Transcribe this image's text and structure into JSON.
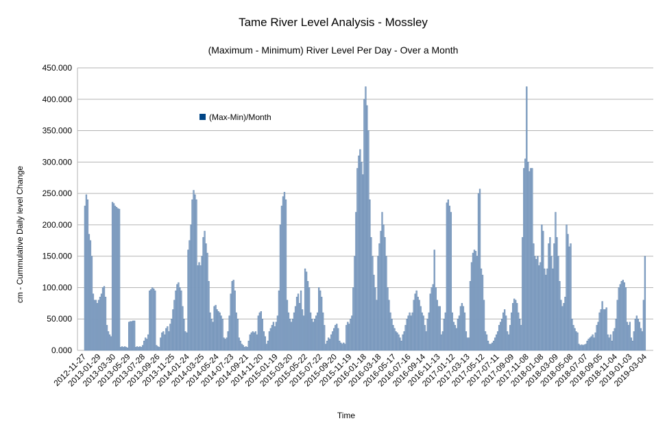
{
  "chart_data": {
    "type": "bar",
    "title": "Tame River Level Analysis - Mossley",
    "subtitle": "(Maximum - Minimum) River Level Per Day - Over a Month",
    "xlabel": "Time",
    "ylabel": "cm - Cummulative Daily level Change",
    "ylim": [
      0,
      450
    ],
    "yticks": [
      "0.000",
      "50.000",
      "100.000",
      "150.000",
      "200.000",
      "250.000",
      "300.000",
      "350.000",
      "400.000",
      "450.000"
    ],
    "grid": true,
    "legend_position": "upper-left-inside",
    "legend": [
      {
        "name": "(Max-Min)/Month",
        "color": "#004586"
      }
    ],
    "bar_color": "#8fa9c9",
    "xtick_labels": [
      "2012-11-27",
      "2013-01-29",
      "2013-03-30",
      "2013-05-29",
      "2013-07-28",
      "2013-09-26",
      "2013-11-25",
      "2014-01-24",
      "2014-03-25",
      "2014-05-24",
      "2014-07-23",
      "2014-09-21",
      "2014-11-20",
      "2015-01-19",
      "2015-03-20",
      "2015-05-22",
      "2015-07-22",
      "2015-09-20",
      "2015-11-19",
      "2016-01-18",
      "2016-03-18",
      "2016-05-17",
      "2016-07-16",
      "2016-09-14",
      "2016-11-13",
      "2017-01-12",
      "2017-03-13",
      "2017-05-12",
      "2017-07-11",
      "2017-09-09",
      "2017-11-08",
      "2018-01-08",
      "2018-03-09",
      "2018-05-08",
      "2018-07-07",
      "2018-09-05",
      "2018-11-04",
      "2019-01-03",
      "2019-03-04"
    ],
    "series": [
      {
        "name": "(Max-Min)/Month",
        "values": [
          230,
          248,
          240,
          185,
          175,
          150,
          90,
          80,
          80,
          75,
          80,
          85,
          90,
          100,
          102,
          85,
          40,
          30,
          25,
          22,
          236,
          234,
          230,
          228,
          226,
          225,
          5,
          6,
          5,
          6,
          5,
          4,
          45,
          46,
          46,
          47,
          47,
          5,
          6,
          5,
          6,
          5,
          8,
          15,
          20,
          18,
          25,
          95,
          97,
          100,
          98,
          95,
          8,
          6,
          5,
          20,
          28,
          30,
          25,
          35,
          38,
          30,
          42,
          50,
          65,
          80,
          95,
          105,
          108,
          100,
          95,
          70,
          50,
          30,
          28,
          160,
          175,
          200,
          240,
          255,
          248,
          240,
          135,
          140,
          135,
          150,
          180,
          190,
          170,
          155,
          110,
          60,
          50,
          45,
          70,
          72,
          65,
          62,
          60,
          55,
          50,
          20,
          18,
          20,
          30,
          55,
          90,
          110,
          112,
          95,
          60,
          50,
          20,
          15,
          10,
          8,
          5,
          6,
          5,
          15,
          25,
          28,
          30,
          28,
          30,
          25,
          55,
          60,
          62,
          50,
          30,
          22,
          10,
          15,
          30,
          35,
          40,
          45,
          38,
          45,
          55,
          95,
          200,
          230,
          245,
          252,
          240,
          80,
          60,
          50,
          45,
          50,
          60,
          70,
          85,
          90,
          75,
          95,
          65,
          55,
          130,
          125,
          110,
          100,
          60,
          50,
          45,
          50,
          55,
          60,
          100,
          95,
          85,
          60,
          40,
          10,
          15,
          20,
          18,
          25,
          30,
          35,
          40,
          42,
          35,
          15,
          12,
          10,
          12,
          10,
          40,
          45,
          42,
          50,
          55,
          100,
          150,
          220,
          290,
          310,
          320,
          300,
          280,
          400,
          420,
          390,
          350,
          240,
          180,
          150,
          120,
          100,
          80,
          150,
          170,
          190,
          220,
          200,
          180,
          150,
          100,
          80,
          60,
          50,
          40,
          35,
          30,
          28,
          25,
          20,
          15,
          25,
          30,
          40,
          50,
          55,
          60,
          55,
          60,
          80,
          90,
          95,
          85,
          80,
          70,
          60,
          55,
          40,
          30,
          50,
          60,
          90,
          100,
          105,
          160,
          100,
          80,
          70,
          70,
          25,
          30,
          50,
          60,
          235,
          240,
          230,
          220,
          60,
          45,
          40,
          35,
          50,
          55,
          70,
          75,
          70,
          60,
          30,
          20,
          20,
          110,
          140,
          155,
          160,
          158,
          150,
          250,
          257,
          130,
          120,
          80,
          30,
          25,
          15,
          10,
          10,
          12,
          15,
          20,
          25,
          30,
          40,
          45,
          50,
          60,
          65,
          55,
          30,
          25,
          40,
          60,
          75,
          82,
          80,
          75,
          60,
          50,
          40,
          180,
          290,
          305,
          420,
          300,
          285,
          290,
          290,
          170,
          150,
          145,
          150,
          135,
          140,
          200,
          190,
          130,
          120,
          130,
          170,
          180,
          150,
          130,
          170,
          220,
          180,
          150,
          110,
          80,
          70,
          75,
          85,
          200,
          185,
          165,
          170,
          50,
          40,
          35,
          30,
          28,
          10,
          8,
          9,
          8,
          9,
          10,
          15,
          18,
          20,
          22,
          25,
          20,
          28,
          40,
          45,
          60,
          65,
          78,
          65,
          65,
          68,
          25,
          20,
          25,
          15,
          30,
          35,
          50,
          80,
          100,
          105,
          110,
          112,
          108,
          100,
          45,
          40,
          45,
          20,
          15,
          30,
          50,
          55,
          50,
          45,
          35,
          30,
          80,
          150
        ]
      }
    ]
  }
}
